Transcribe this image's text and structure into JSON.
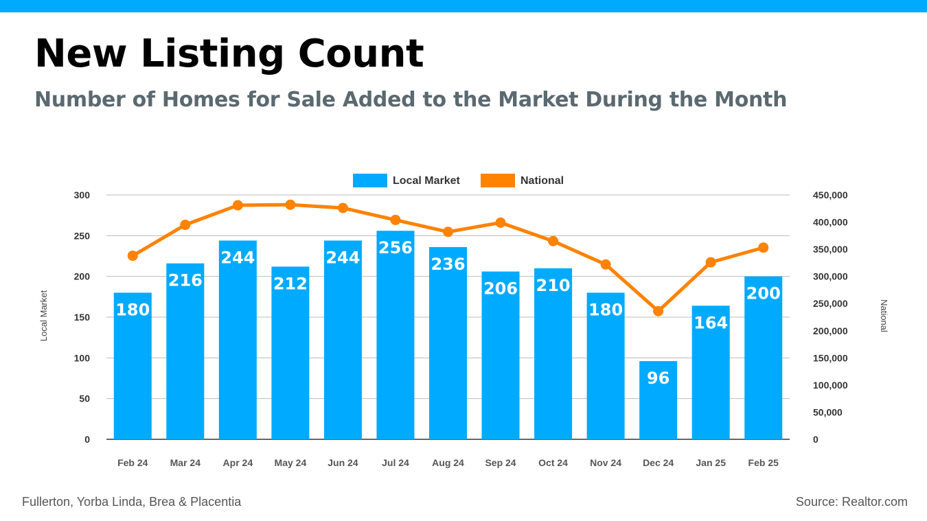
{
  "header": {
    "title": "New Listing Count",
    "subtitle": "Number of Homes for Sale Added to the Market During the Month"
  },
  "footer": {
    "region": "Fullerton, Yorba Linda, Brea & Placentia",
    "source": "Source: Realtor.com"
  },
  "colors": {
    "accent_bar": "#00aaff",
    "local_market": "#00aaff",
    "national": "#ff8200"
  },
  "chart_data": {
    "type": "bar",
    "categories": [
      "Feb 24",
      "Mar 24",
      "Apr 24",
      "May 24",
      "Jun 24",
      "Jul 24",
      "Aug 24",
      "Sep 24",
      "Oct 24",
      "Nov 24",
      "Dec 24",
      "Jan 25",
      "Feb 25"
    ],
    "series": [
      {
        "name": "Local Market",
        "type": "bar",
        "axis": "left",
        "values": [
          180,
          216,
          244,
          212,
          244,
          256,
          236,
          206,
          210,
          180,
          96,
          164,
          200
        ]
      },
      {
        "name": "National",
        "type": "line",
        "axis": "right",
        "values": [
          338000,
          395000,
          431000,
          432000,
          426000,
          404000,
          382000,
          399000,
          365000,
          322000,
          236000,
          326000,
          353000
        ]
      }
    ],
    "ylabel": "Local Market",
    "ylabel_right": "National",
    "ylim": [
      0,
      300
    ],
    "ylim_right": [
      0,
      450000
    ],
    "yticks": [
      "0",
      "50",
      "100",
      "150",
      "200",
      "250",
      "300"
    ],
    "yticks_right": [
      "0",
      "50,000",
      "100,000",
      "150,000",
      "200,000",
      "250,000",
      "300,000",
      "350,000",
      "400,000",
      "450,000"
    ],
    "grid": true,
    "legend_position": "top-center"
  }
}
